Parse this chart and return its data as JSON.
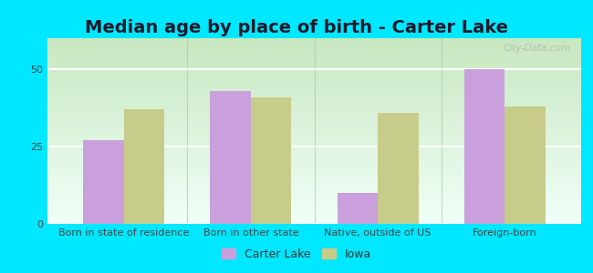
{
  "title": "Median age by place of birth - Carter Lake",
  "categories": [
    "Born in state of residence",
    "Born in other state",
    "Native, outside of US",
    "Foreign-born"
  ],
  "carter_lake": [
    27,
    43,
    10,
    50
  ],
  "iowa": [
    37,
    41,
    36,
    38
  ],
  "carter_lake_color": "#c9a0dc",
  "iowa_color": "#c8cc8a",
  "bar_width": 0.32,
  "ylim": [
    0,
    60
  ],
  "yticks": [
    0,
    25,
    50
  ],
  "legend_labels": [
    "Carter Lake",
    "Iowa"
  ],
  "bg_outer": "#00e8ff",
  "bg_inner": "#e8f5e0",
  "grid_color": "#ffffff",
  "title_fontsize": 14,
  "tick_fontsize": 8,
  "legend_fontsize": 9,
  "separator_color": "#aaccaa",
  "title_color": "#1a1a2e"
}
